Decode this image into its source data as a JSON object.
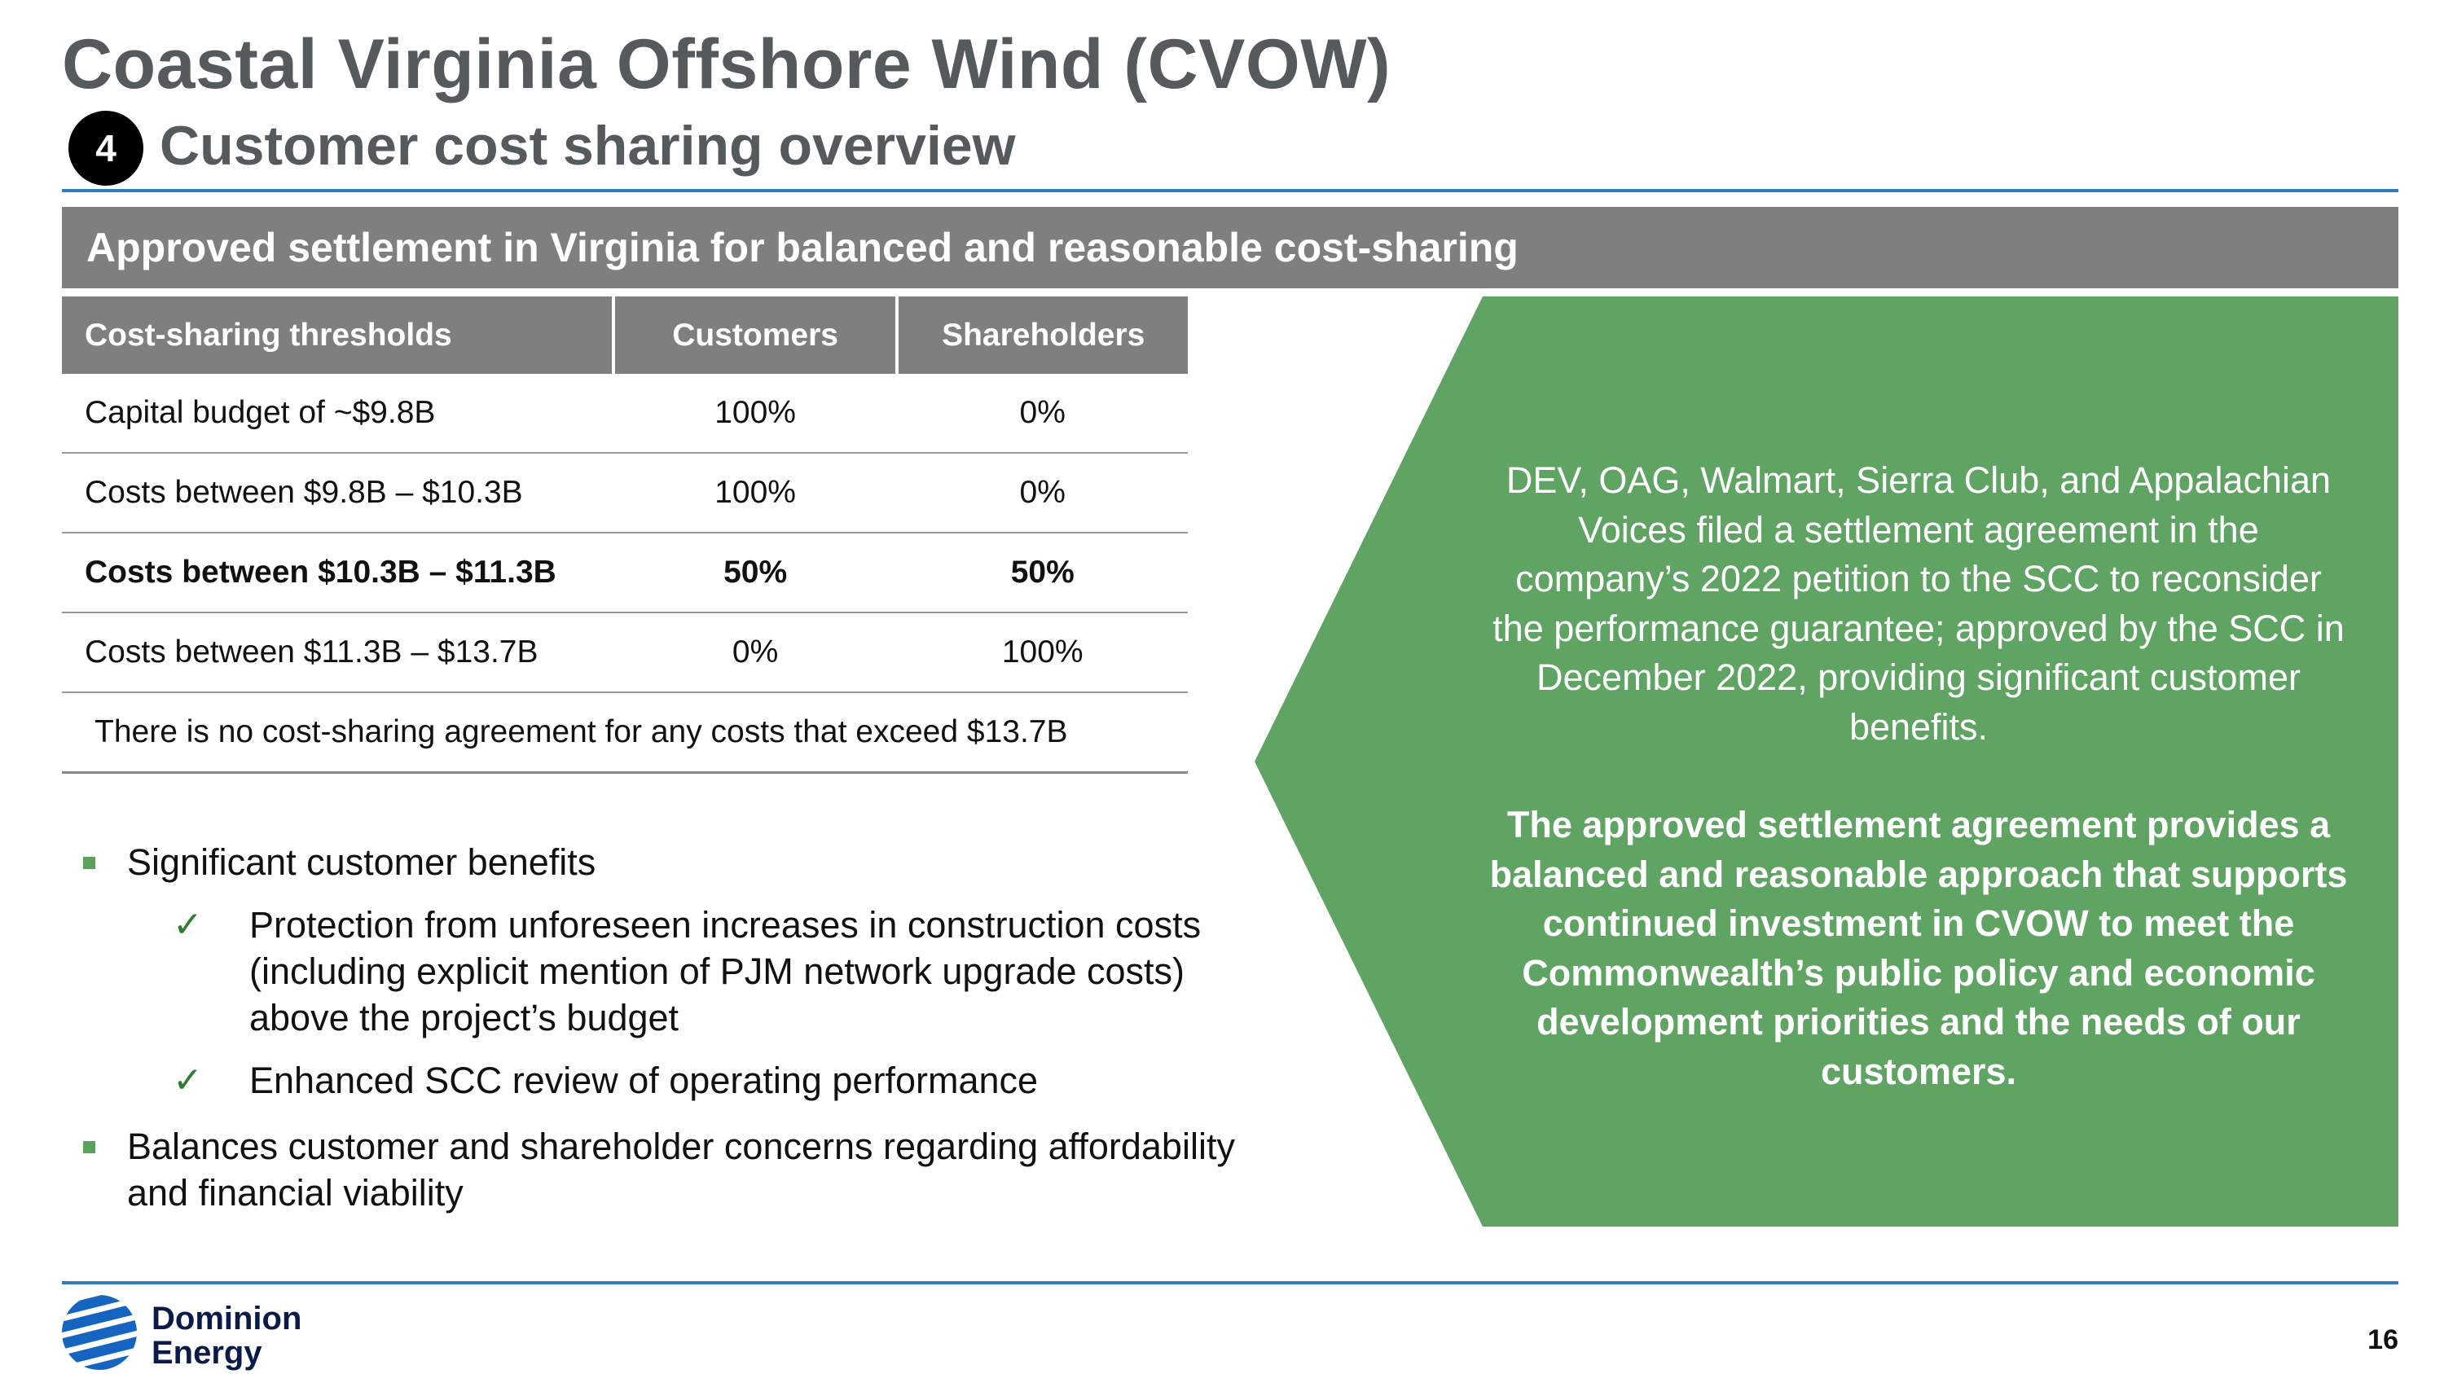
{
  "header": {
    "title": "Coastal Virginia Offshore Wind (CVOW)",
    "step_number": "4",
    "subtitle": "Customer cost sharing overview"
  },
  "banner": {
    "text": "Approved settlement in Virginia for balanced and reasonable cost-sharing"
  },
  "table": {
    "headers": [
      "Cost-sharing thresholds",
      "Customers",
      "Shareholders"
    ],
    "rows": [
      [
        "Capital budget of ~$9.8B",
        "100%",
        "0%"
      ],
      [
        "Costs between $9.8B – $10.3B",
        "100%",
        "0%"
      ],
      [
        "Costs between $10.3B – $11.3B",
        "50%",
        "50%"
      ],
      [
        "Costs between $11.3B – $13.7B",
        "0%",
        "100%"
      ]
    ],
    "note": "There is no cost-sharing agreement for any costs that exceed $13.7B"
  },
  "bullets": {
    "b1": "Significant customer benefits",
    "sub1": "Protection from unforeseen increases in construction costs (including explicit mention of PJM network upgrade costs) above the project’s budget",
    "sub2": "Enhanced SCC review of operating performance",
    "b2": "Balances customer and shareholder concerns regarding affordability and financial viability",
    "check_glyph": "✓"
  },
  "callout": {
    "text1": "DEV, OAG, Walmart, Sierra Club, and Appalachian Voices filed a settlement agreement in the company’s 2022 petition to the SCC to reconsider the performance guarantee; approved by the SCC in December 2022, providing significant customer benefits.",
    "text2": "The approved settlement agreement provides a balanced and reasonable approach that supports continued investment in CVOW to meet the Commonwealth’s public policy and economic development priorities and the needs of our customers."
  },
  "footer": {
    "logo_line1": "Dominion",
    "logo_line2": "Energy",
    "page_number": "16"
  },
  "colors": {
    "title_gray": "#555a5c",
    "banner_gray": "#7f7f7f",
    "callout_green": "#5fa463",
    "rule_blue": "#2f7cb8",
    "logo_blue": "#1565c0"
  }
}
